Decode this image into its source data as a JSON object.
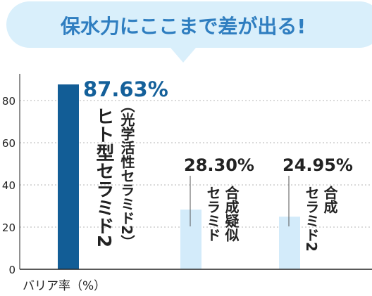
{
  "header": {
    "bubble_text": "保水力にここまで差が出る!"
  },
  "colors": {
    "bubble_bg": "#d9effb",
    "bubble_text": "#2f7ec0",
    "primary_bar": "#125d96",
    "secondary_bar": "#d3ebfa",
    "primary_label": "#14609a",
    "axis": "#222222",
    "grid": "#b5b5b5",
    "leader": "#555555"
  },
  "chart_data": {
    "type": "bar",
    "categories": [
      "ヒト型セラミド2（光学活性セラミド2）",
      "合成疑似セラミド",
      "合成セラミド2"
    ],
    "values": [
      87.63,
      28.3,
      24.95
    ],
    "value_labels": [
      "87.63%",
      "28.30%",
      "24.95%"
    ],
    "category_lines": [
      [
        "ヒト型セラミド2",
        "（光学活性セラミド2）"
      ],
      [
        "セラミド",
        "合成疑似"
      ],
      [
        "セラミド2",
        "合成"
      ]
    ],
    "xlabel": "",
    "ylabel": "バリア率（%）",
    "yticks": [
      0,
      20,
      40,
      60,
      80
    ],
    "ylim": [
      0,
      92
    ],
    "grid": true,
    "highlight_index": 0
  }
}
